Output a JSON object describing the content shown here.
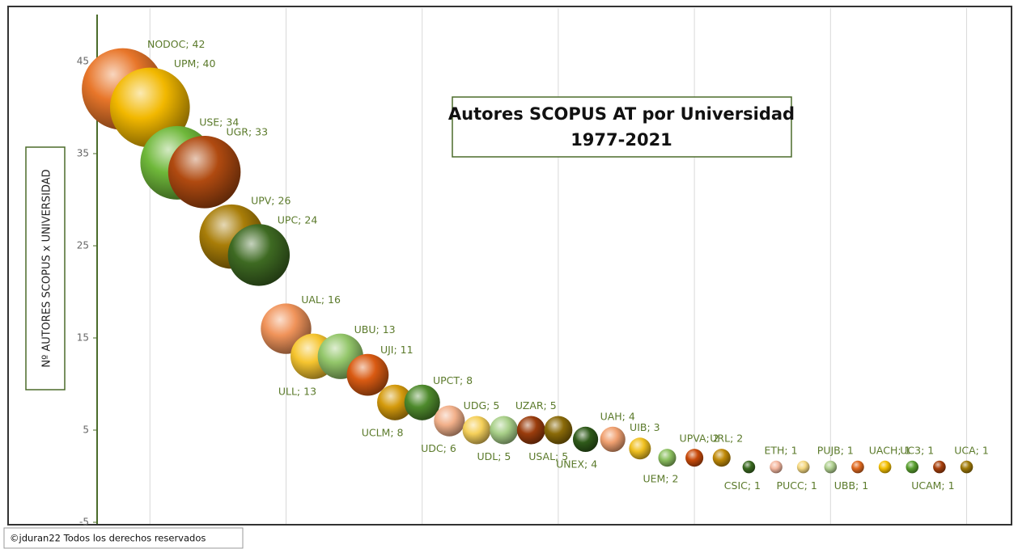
{
  "chart_data": {
    "type": "bubble",
    "title": "Autores SCOPUS AT por Universidad",
    "subtitle": "1977-2021",
    "y_label": "Nº AUTORES SCOPUS x UNIVERSIDAD",
    "footer": "©jduran22 Todos los derechos reservados",
    "x": [
      1,
      2,
      3,
      4,
      5,
      6,
      7,
      8,
      9,
      10,
      11,
      12,
      13,
      14,
      15,
      16,
      17,
      18,
      19,
      20,
      21,
      22,
      23,
      24,
      25,
      26,
      27,
      28,
      29,
      30,
      31,
      32
    ],
    "values": [
      42,
      40,
      34,
      33,
      26,
      24,
      16,
      13,
      13,
      11,
      8,
      8,
      6,
      5,
      5,
      5,
      5,
      4,
      4,
      3,
      2,
      2,
      2,
      1,
      1,
      1,
      1,
      1,
      1,
      1,
      1,
      1
    ],
    "sizes": [
      42,
      40,
      34,
      33,
      26,
      24,
      16,
      13,
      13,
      11,
      8,
      8,
      6,
      5,
      5,
      5,
      5,
      4,
      4,
      3,
      2,
      2,
      2,
      1,
      1,
      1,
      1,
      1,
      1,
      1,
      1,
      1
    ],
    "value_labels": [
      "NODOC; 42",
      "UPM; 40",
      "USE; 34",
      "UGR; 33",
      "UPV; 26",
      "UPC; 24",
      "UAL; 16",
      "ULL; 13",
      "UBU; 13",
      "UJI; 11",
      "UCLM; 8",
      "UPCT; 8",
      "UDC; 6",
      "UDG; 5",
      "UDL; 5",
      "UZAR; 5",
      "USAL; 5",
      "UNEX; 4",
      "UAH; 4",
      "UIB; 3",
      "UEM; 2",
      "UPVA; 2",
      "URL; 2",
      "CSIC; 1",
      "ETH; 1",
      "PUCC; 1",
      "PUJB; 1",
      "UBB; 1",
      "UACH; 1",
      "UC3; 1",
      "UCAM; 1",
      "UCA; 1"
    ],
    "colors": [
      "#e8762a",
      "#f2b800",
      "#6fb83a",
      "#b04a10",
      "#a87d08",
      "#3e6a22",
      "#f0935a",
      "#f6c530",
      "#93c66a",
      "#d95a12",
      "#d49a0c",
      "#4e8a2c",
      "#f2b08a",
      "#f5d05a",
      "#a8cf88",
      "#9a3c0c",
      "#8a6a08",
      "#2f5a1a",
      "#f0a070",
      "#f0c020",
      "#8cc060",
      "#c84a0a",
      "#c08a08",
      "#3a6a20",
      "#f5b8a0",
      "#f5d880",
      "#b0d090",
      "#e06a20",
      "#f5c000",
      "#5aa030",
      "#a8400c",
      "#a07a08"
    ],
    "xlim": [
      0,
      33.5
    ],
    "xticks": [
      2,
      7,
      12,
      17,
      22,
      27,
      32
    ],
    "ylim": [
      -5,
      50
    ],
    "yticks": [
      -5,
      5,
      15,
      25,
      35,
      45
    ],
    "grid": "x"
  }
}
